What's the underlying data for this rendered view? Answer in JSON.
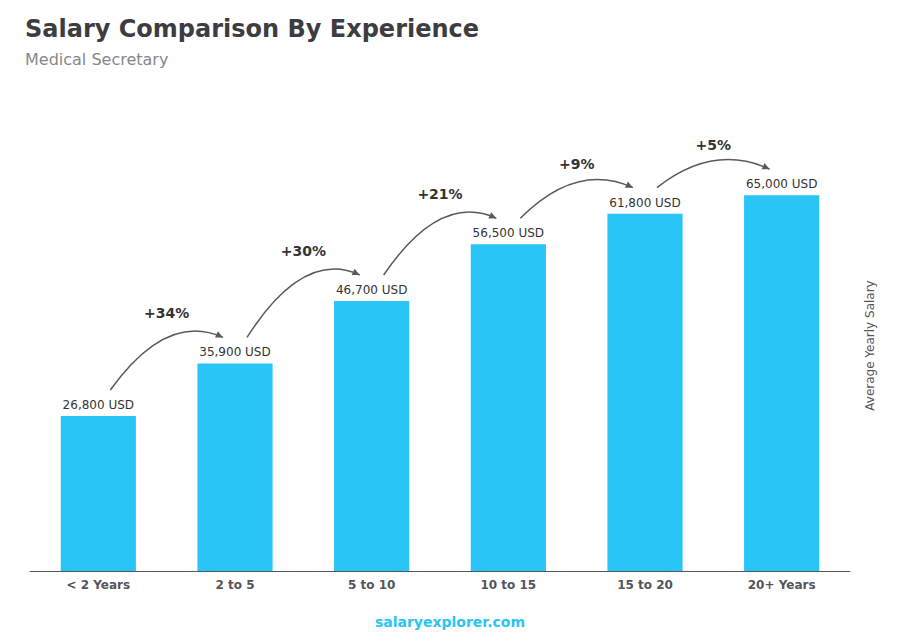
{
  "chart_data": {
    "type": "bar",
    "title": "Salary Comparison By Experience",
    "subtitle": "Medical Secretary",
    "categories": [
      "< 2 Years",
      "2 to 5",
      "5 to 10",
      "10 to 15",
      "15 to 20",
      "20+ Years"
    ],
    "values": [
      26800,
      35900,
      46700,
      56500,
      61800,
      65000
    ],
    "value_labels": [
      "26,800 USD",
      "35,900 USD",
      "46,700 USD",
      "56,500 USD",
      "61,800 USD",
      "65,000 USD"
    ],
    "data_labels": true,
    "color": "#29c5f6",
    "ylabel": "Average Yearly Salary",
    "ylim": [
      0,
      78000
    ],
    "tick_labels": "x",
    "grid": false,
    "annotations": [
      "+34%",
      "+30%",
      "+21%",
      "+9%",
      "+5%"
    ],
    "footer": "salaryexplorer.com"
  }
}
